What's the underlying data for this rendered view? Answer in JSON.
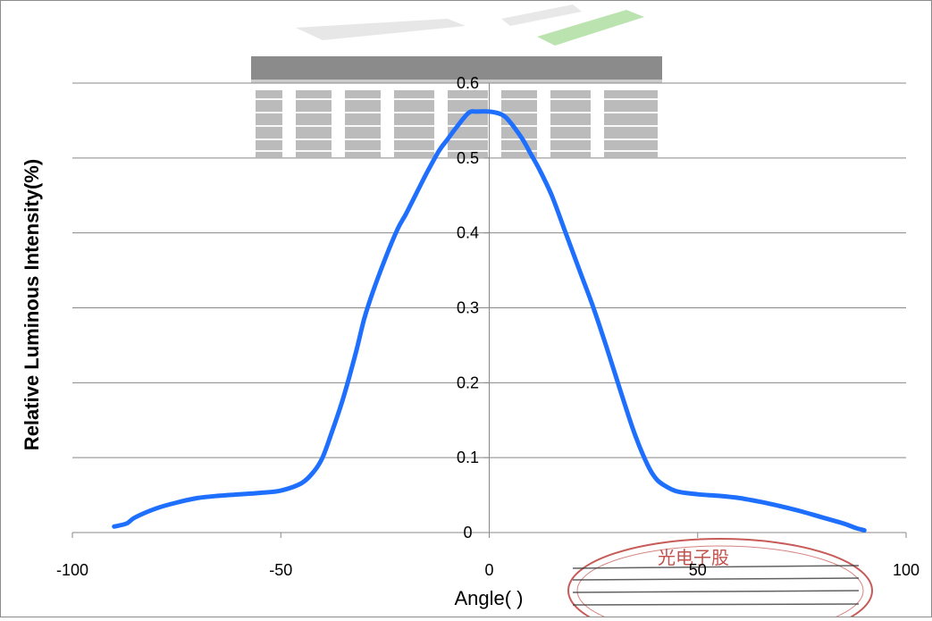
{
  "chart_data": {
    "type": "line",
    "title": "",
    "xlabel": "Angle(  )",
    "ylabel": "Relative Luminous Intensity(%)",
    "xlim": [
      -100,
      100
    ],
    "ylim": [
      0,
      0.6
    ],
    "x_ticks": [
      -100,
      -50,
      0,
      50,
      100
    ],
    "x_tick_labels": [
      "-100",
      "-50",
      "0",
      "50",
      "100"
    ],
    "y_ticks": [
      0,
      0.1,
      0.2,
      0.3,
      0.4,
      0.5,
      0.6
    ],
    "y_tick_labels": [
      "0",
      "0.1",
      "0.2",
      "0.3",
      "0.4",
      "0.5",
      "0.6"
    ],
    "grid": "horizontal",
    "legend": "none",
    "series": [
      {
        "color": "#1f6fff",
        "x": [
          -90,
          -87,
          -85,
          -80,
          -75,
          -70,
          -65,
          -60,
          -55,
          -50,
          -45,
          -42,
          -40,
          -38,
          -35,
          -32,
          -30,
          -28,
          -25,
          -22,
          -20,
          -18,
          -15,
          -12,
          -10,
          -8,
          -5,
          -3,
          0,
          3,
          5,
          8,
          10,
          12,
          15,
          18,
          20,
          22,
          25,
          28,
          30,
          32,
          35,
          38,
          40,
          42,
          45,
          50,
          55,
          60,
          65,
          70,
          75,
          80,
          85,
          88,
          90
        ],
        "y": [
          0.008,
          0.012,
          0.02,
          0.032,
          0.04,
          0.046,
          0.049,
          0.051,
          0.053,
          0.056,
          0.066,
          0.082,
          0.1,
          0.13,
          0.18,
          0.24,
          0.285,
          0.32,
          0.365,
          0.405,
          0.425,
          0.447,
          0.48,
          0.51,
          0.525,
          0.54,
          0.56,
          0.562,
          0.562,
          0.558,
          0.548,
          0.525,
          0.505,
          0.485,
          0.45,
          0.405,
          0.375,
          0.345,
          0.3,
          0.25,
          0.215,
          0.18,
          0.13,
          0.09,
          0.072,
          0.063,
          0.055,
          0.051,
          0.049,
          0.046,
          0.041,
          0.035,
          0.028,
          0.02,
          0.012,
          0.006,
          0.003
        ]
      }
    ]
  },
  "watermark_text": "光电子股",
  "colors": {
    "curve": "#1f6fff",
    "grid": "#888888",
    "axis": "#888888",
    "stamp": "#b8322e",
    "banner": "#3a3a3a"
  }
}
